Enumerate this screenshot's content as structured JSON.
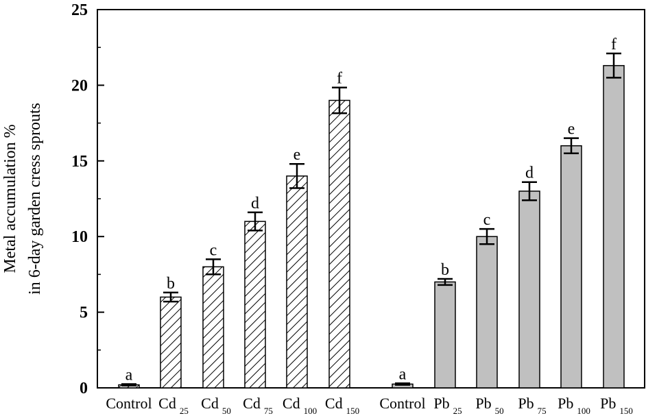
{
  "chart_data": {
    "type": "bar",
    "title": "",
    "xlabel": "",
    "ylabel_line1": "Metal accumulation %",
    "ylabel_line2": "in 6-day garden cress sprouts",
    "ylim": [
      0,
      25
    ],
    "yticks": [
      0,
      5,
      10,
      15,
      20,
      25
    ],
    "grid": false,
    "legend": "none",
    "groups": [
      {
        "pattern": "hatched",
        "color": "#ffffff",
        "bars": [
          {
            "label": "Control",
            "sub": "",
            "value": 0.2,
            "error": 0.05,
            "sig": "a"
          },
          {
            "label": "Cd",
            "sub": "25",
            "value": 6.0,
            "error": 0.3,
            "sig": "b"
          },
          {
            "label": "Cd",
            "sub": "50",
            "value": 8.0,
            "error": 0.5,
            "sig": "c"
          },
          {
            "label": "Cd",
            "sub": "75",
            "value": 11.0,
            "error": 0.6,
            "sig": "d"
          },
          {
            "label": "Cd",
            "sub": "100",
            "value": 14.0,
            "error": 0.8,
            "sig": "e"
          },
          {
            "label": "Cd",
            "sub": "150",
            "value": 19.0,
            "error": 0.85,
            "sig": "f"
          }
        ]
      },
      {
        "pattern": "solid",
        "color": "#c0c0c0",
        "bars": [
          {
            "label": "Control",
            "sub": "",
            "value": 0.25,
            "error": 0.05,
            "sig": "a"
          },
          {
            "label": "Pb",
            "sub": "25",
            "value": 7.0,
            "error": 0.2,
            "sig": "b"
          },
          {
            "label": "Pb",
            "sub": "50",
            "value": 10.0,
            "error": 0.5,
            "sig": "c"
          },
          {
            "label": "Pb",
            "sub": "75",
            "value": 13.0,
            "error": 0.6,
            "sig": "d"
          },
          {
            "label": "Pb",
            "sub": "100",
            "value": 16.0,
            "error": 0.5,
            "sig": "e"
          },
          {
            "label": "Pb",
            "sub": "150",
            "value": 21.3,
            "error": 0.8,
            "sig": "f"
          }
        ]
      }
    ]
  }
}
